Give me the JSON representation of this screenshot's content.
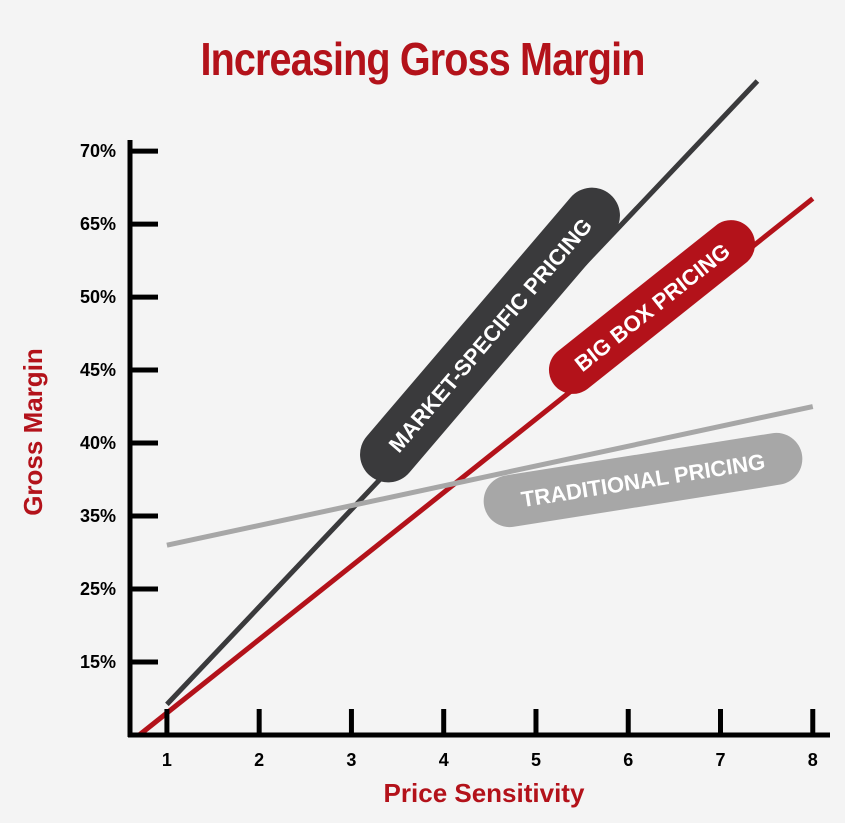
{
  "chart_data": {
    "type": "line",
    "title": "Increasing Gross Margin",
    "xlabel": "Price Sensitivity",
    "ylabel": "Gross Margin",
    "x_ticks": [
      "1",
      "2",
      "3",
      "4",
      "5",
      "6",
      "7",
      "8"
    ],
    "y_ticks": [
      "15%",
      "25%",
      "35%",
      "40%",
      "45%",
      "50%",
      "65%",
      "70%"
    ],
    "y_tick_positions": [
      1,
      2,
      3,
      4,
      5,
      6,
      7,
      8
    ],
    "xlim": [
      0.6,
      8.1
    ],
    "ylim": [
      0,
      8.7
    ],
    "grid": false,
    "series": [
      {
        "name": "MARKET-SPECIFIC PRICING",
        "color": "#3a3a3c",
        "x": [
          1.0,
          7.4
        ],
        "y": [
          0.42,
          8.96
        ]
      },
      {
        "name": "BIG BOX PRICING",
        "color": "#b3121a",
        "x": [
          0.7,
          8.0
        ],
        "y": [
          0.0,
          7.35
        ]
      },
      {
        "name": "TRADITIONAL PRICING",
        "color": "#a7a7a7",
        "x": [
          1.0,
          8.0
        ],
        "y": [
          2.6,
          4.5
        ]
      }
    ]
  },
  "colors": {
    "title": "#b3121a",
    "axis": "#000000",
    "axis_label": "#b3121a"
  }
}
